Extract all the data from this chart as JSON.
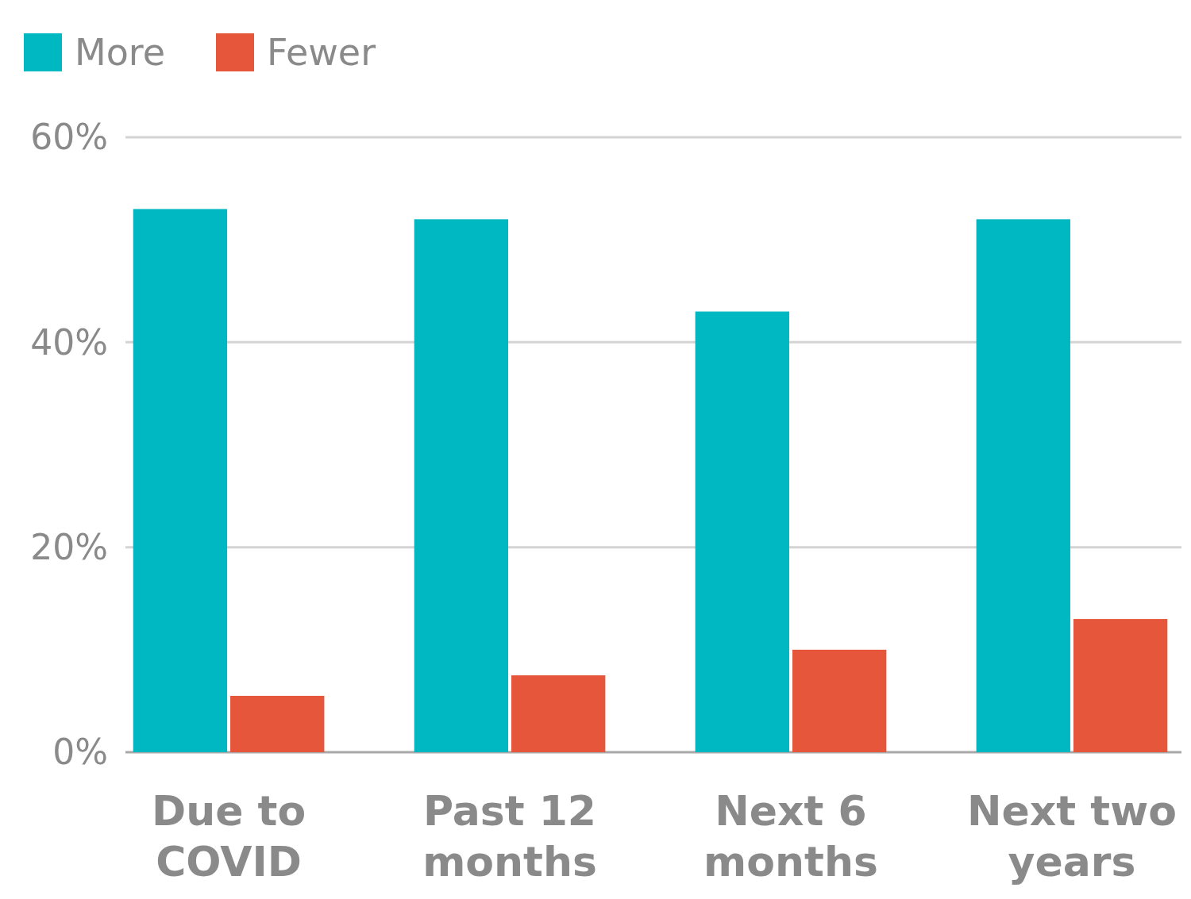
{
  "chart_data": {
    "type": "bar",
    "categories": [
      "Due to COVID",
      "Past 12 months",
      "Next 6 months",
      "Next two years"
    ],
    "series": [
      {
        "name": "More",
        "color": "#00b8c2",
        "values": [
          53,
          52,
          43,
          52
        ]
      },
      {
        "name": "Fewer",
        "color": "#e5563b",
        "values": [
          5.5,
          7.5,
          10,
          13
        ]
      }
    ],
    "ylim": [
      0,
      60
    ],
    "yticks": [
      {
        "value": 0,
        "label": "0%"
      },
      {
        "value": 20,
        "label": "20%"
      },
      {
        "value": 40,
        "label": "40%"
      },
      {
        "value": 60,
        "label": "60%"
      }
    ],
    "grid": "y",
    "legend": "top left"
  }
}
